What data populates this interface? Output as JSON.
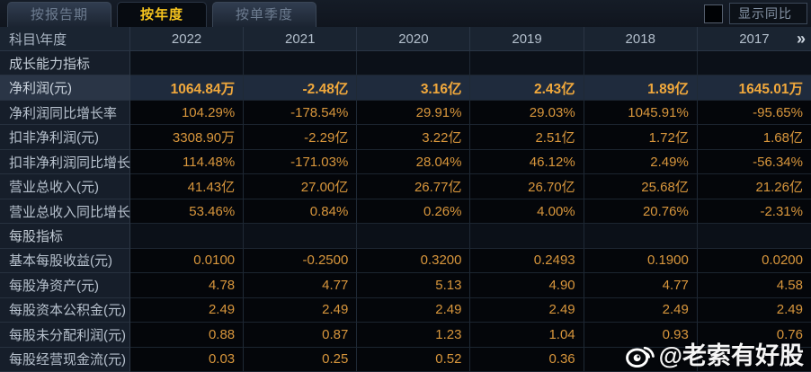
{
  "tabs": [
    {
      "label": "按报告期",
      "active": false
    },
    {
      "label": "按年度",
      "active": true
    },
    {
      "label": "按单季度",
      "active": false
    }
  ],
  "controls": {
    "show_yoy_label": "显示同比",
    "checkbox_checked": false
  },
  "table": {
    "corner_label": "科目\\年度",
    "years": [
      "2022",
      "2021",
      "2020",
      "2019",
      "2018",
      "2017"
    ],
    "more_icon": "»",
    "rows": [
      {
        "type": "section",
        "label": "成长能力指标",
        "values": [
          "",
          "",
          "",
          "",
          "",
          ""
        ]
      },
      {
        "type": "highlight",
        "label": "净利润(元)",
        "values": [
          "1064.84万",
          "-2.48亿",
          "3.16亿",
          "2.43亿",
          "1.89亿",
          "1645.01万"
        ]
      },
      {
        "type": "data",
        "label": "净利润同比增长率",
        "values": [
          "104.29%",
          "-178.54%",
          "29.91%",
          "29.03%",
          "1045.91%",
          "-95.65%"
        ]
      },
      {
        "type": "data",
        "label": "扣非净利润(元)",
        "values": [
          "3308.90万",
          "-2.29亿",
          "3.22亿",
          "2.51亿",
          "1.72亿",
          "1.68亿"
        ]
      },
      {
        "type": "data",
        "label": "扣非净利润同比增长率",
        "values": [
          "114.48%",
          "-171.03%",
          "28.04%",
          "46.12%",
          "2.49%",
          "-56.34%"
        ]
      },
      {
        "type": "data",
        "label": "营业总收入(元)",
        "values": [
          "41.43亿",
          "27.00亿",
          "26.77亿",
          "26.70亿",
          "25.68亿",
          "21.26亿"
        ]
      },
      {
        "type": "data",
        "label": "营业总收入同比增长率",
        "values": [
          "53.46%",
          "0.84%",
          "0.26%",
          "4.00%",
          "20.76%",
          "-2.31%"
        ]
      },
      {
        "type": "section",
        "label": "每股指标",
        "values": [
          "",
          "",
          "",
          "",
          "",
          ""
        ]
      },
      {
        "type": "data",
        "label": "基本每股收益(元)",
        "values": [
          "0.0100",
          "-0.2500",
          "0.3200",
          "0.2493",
          "0.1900",
          "0.0200"
        ]
      },
      {
        "type": "data",
        "label": "每股净资产(元)",
        "values": [
          "4.78",
          "4.77",
          "5.13",
          "4.90",
          "4.77",
          "4.58"
        ]
      },
      {
        "type": "data",
        "label": "每股资本公积金(元)",
        "values": [
          "2.49",
          "2.49",
          "2.49",
          "2.49",
          "2.49",
          "2.49"
        ]
      },
      {
        "type": "data",
        "label": "每股未分配利润(元)",
        "values": [
          "0.88",
          "0.87",
          "1.23",
          "1.04",
          "0.93",
          "0.76"
        ]
      },
      {
        "type": "data",
        "label": "每股经营现金流(元)",
        "values": [
          "0.03",
          "0.25",
          "0.52",
          "0.36",
          "",
          ""
        ]
      }
    ]
  },
  "watermark": {
    "handle": "@老索有好股",
    "icon": "weibo-icon"
  },
  "colors": {
    "value_amber": "#d8963c",
    "highlight_gold": "#f0a83c",
    "active_tab_gold": "#f6c41e",
    "header_bg": "#1a2431",
    "label_col_bg": "#161e2a",
    "cell_bg": "#04060a",
    "highlight_row_bg": "#1f2b3d"
  }
}
